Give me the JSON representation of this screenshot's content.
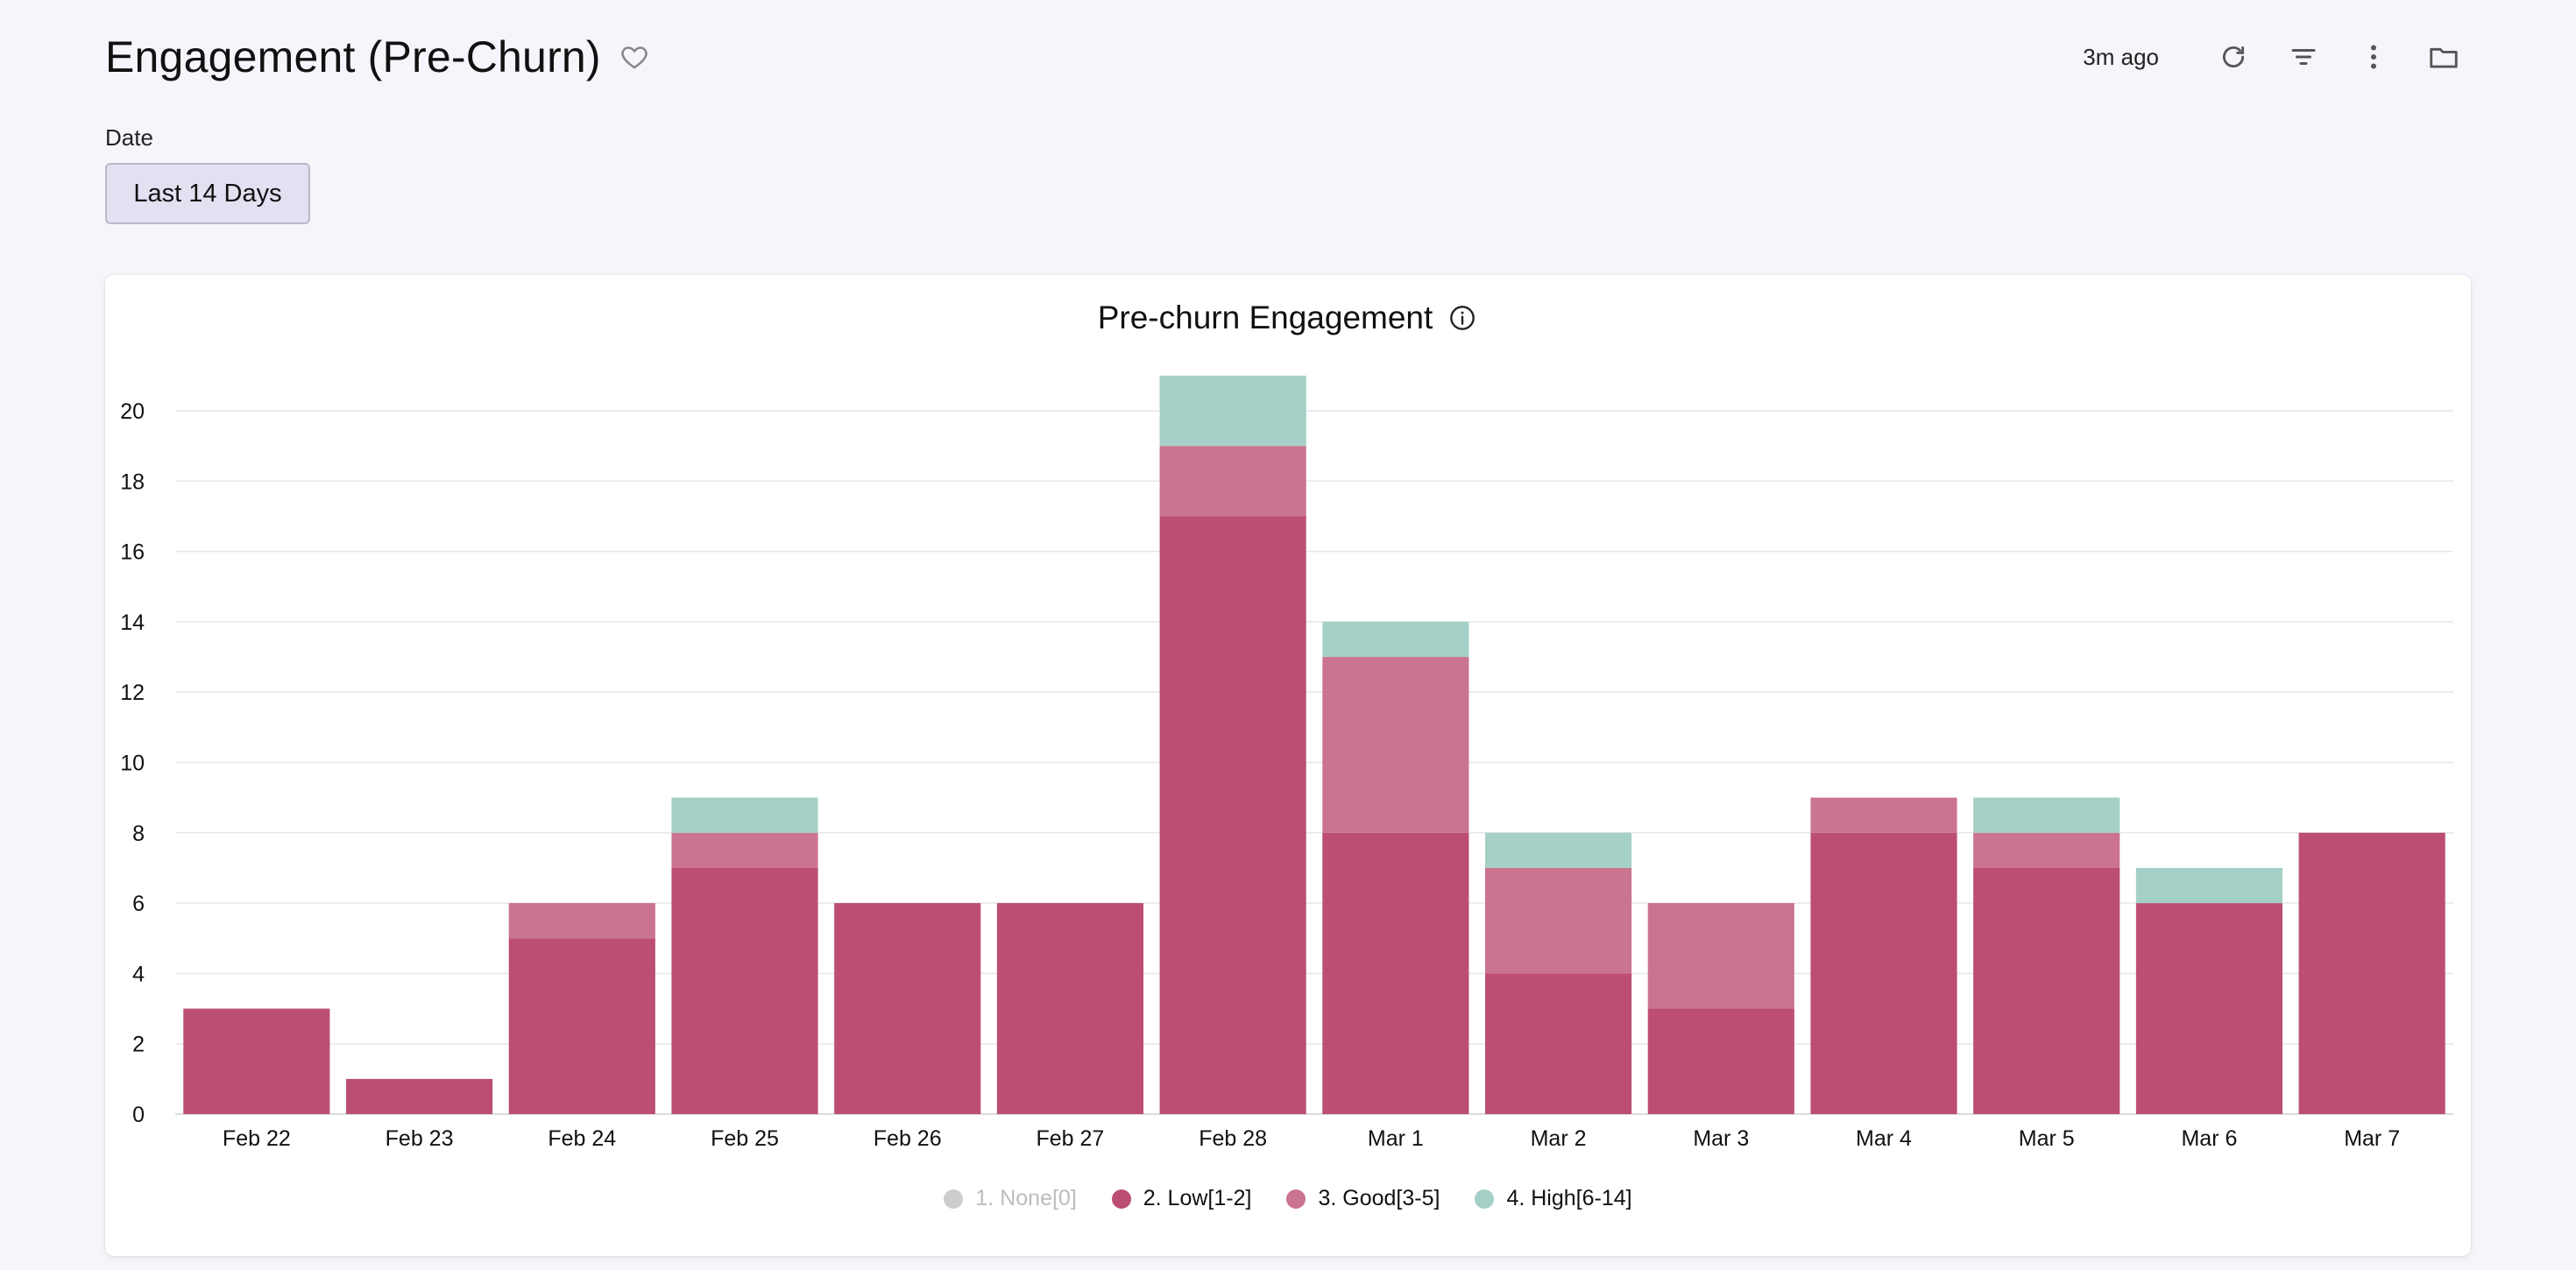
{
  "header": {
    "title": "Engagement (Pre-Churn)",
    "updated": "3m ago"
  },
  "filter": {
    "label": "Date",
    "value": "Last 14 Days"
  },
  "icons": {
    "favorite": "heart-icon",
    "refresh": "refresh-icon",
    "filter": "filter-icon",
    "more": "more-vertical-icon",
    "folder": "folder-icon",
    "info": "info-icon"
  },
  "colors": {
    "none": "#cccccc",
    "low": "#bc4e73",
    "good": "#cb748f",
    "high": "#a5d0c7"
  },
  "chart_data": {
    "type": "bar",
    "stacked": true,
    "title": "Pre-churn Engagement",
    "xlabel": "",
    "ylabel": "",
    "ylim": [
      0,
      21
    ],
    "yticks": [
      0,
      2,
      4,
      6,
      8,
      10,
      12,
      14,
      16,
      18,
      20
    ],
    "grid": true,
    "legend_position": "bottom",
    "categories": [
      "Feb 22",
      "Feb 23",
      "Feb 24",
      "Feb 25",
      "Feb 26",
      "Feb 27",
      "Feb 28",
      "Mar 1",
      "Mar 2",
      "Mar 3",
      "Mar 4",
      "Mar 5",
      "Mar 6",
      "Mar 7"
    ],
    "series": [
      {
        "name": "1. None[0]",
        "color": "#cccccc",
        "hidden": true,
        "values": [
          0,
          0,
          0,
          0,
          0,
          0,
          0,
          0,
          0,
          0,
          0,
          0,
          0,
          0
        ]
      },
      {
        "name": "2. Low[1-2]",
        "color": "#bc4e73",
        "values": [
          3,
          1,
          5,
          7,
          6,
          6,
          17,
          8,
          4,
          3,
          8,
          7,
          6,
          8
        ]
      },
      {
        "name": "3. Good[3-5]",
        "color": "#cb748f",
        "values": [
          0,
          0,
          1,
          1,
          0,
          0,
          2,
          5,
          3,
          3,
          1,
          1,
          0,
          0
        ]
      },
      {
        "name": "4. High[6-14]",
        "color": "#a5d0c7",
        "values": [
          0,
          0,
          0,
          1,
          0,
          0,
          2,
          1,
          1,
          0,
          0,
          1,
          1,
          0
        ]
      }
    ]
  }
}
